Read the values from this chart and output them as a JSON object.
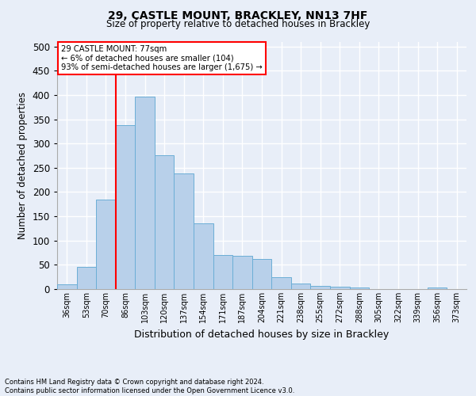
{
  "title1": "29, CASTLE MOUNT, BRACKLEY, NN13 7HF",
  "title2": "Size of property relative to detached houses in Brackley",
  "xlabel": "Distribution of detached houses by size in Brackley",
  "ylabel": "Number of detached properties",
  "footnote1": "Contains HM Land Registry data © Crown copyright and database right 2024.",
  "footnote2": "Contains public sector information licensed under the Open Government Licence v3.0.",
  "categories": [
    "36sqm",
    "53sqm",
    "70sqm",
    "86sqm",
    "103sqm",
    "120sqm",
    "137sqm",
    "154sqm",
    "171sqm",
    "187sqm",
    "204sqm",
    "221sqm",
    "238sqm",
    "255sqm",
    "272sqm",
    "288sqm",
    "305sqm",
    "322sqm",
    "339sqm",
    "356sqm",
    "373sqm"
  ],
  "values": [
    10,
    46,
    185,
    338,
    397,
    275,
    238,
    135,
    70,
    68,
    62,
    25,
    11,
    7,
    5,
    4,
    0,
    0,
    0,
    4,
    0
  ],
  "bar_color": "#b8d0ea",
  "bar_edge_color": "#6baed6",
  "annotation_text_line1": "29 CASTLE MOUNT: 77sqm",
  "annotation_text_line2": "← 6% of detached houses are smaller (104)",
  "annotation_text_line3": "93% of semi-detached houses are larger (1,675) →",
  "annotation_box_color": "white",
  "annotation_box_edge_color": "red",
  "vertical_line_color": "red",
  "vertical_line_x": 2.5,
  "ylim": [
    0,
    510
  ],
  "yticks": [
    0,
    50,
    100,
    150,
    200,
    250,
    300,
    350,
    400,
    450,
    500
  ],
  "background_color": "#e8eef8",
  "grid_color": "white"
}
